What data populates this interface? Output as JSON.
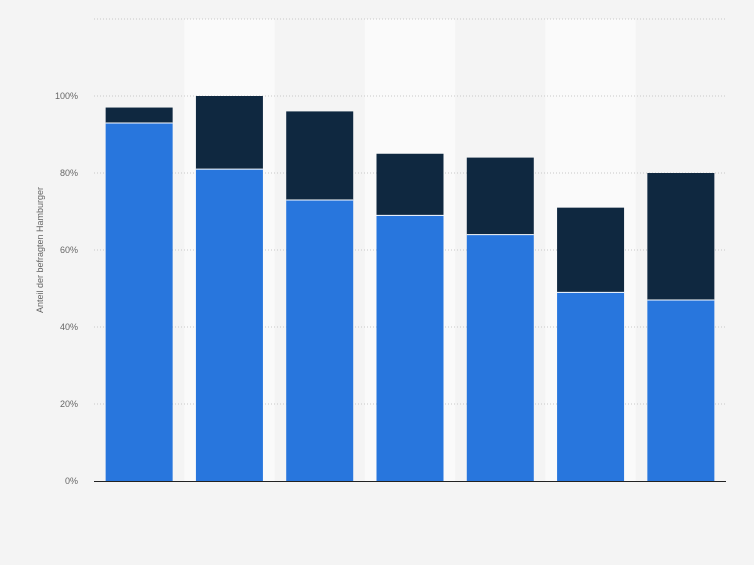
{
  "chart_data": {
    "type": "bar",
    "stacked": true,
    "title": "",
    "xlabel": "",
    "ylabel": "Anteil der befragten Hamburger",
    "categories": [
      "",
      "",
      "",
      "",
      "",
      "",
      ""
    ],
    "series": [
      {
        "values": [
          93,
          81,
          73,
          69,
          64,
          49,
          47
        ]
      },
      {
        "values": [
          4,
          19,
          23,
          16,
          20,
          22,
          33
        ]
      }
    ],
    "ylim": [
      0,
      120
    ],
    "yticks": [
      0,
      20,
      40,
      60,
      80,
      100,
      120
    ],
    "ytick_labels": [
      "0%",
      "20%",
      "40%",
      "60%",
      "80%",
      "100%",
      ""
    ],
    "grid": true,
    "colors": {
      "series": [
        "#2876dd",
        "#0f2840"
      ],
      "grid": "#c8c8c8",
      "axis": "#222222",
      "tick_text": "#666666",
      "band": "#fafafa",
      "background": "#f4f4f4"
    }
  }
}
